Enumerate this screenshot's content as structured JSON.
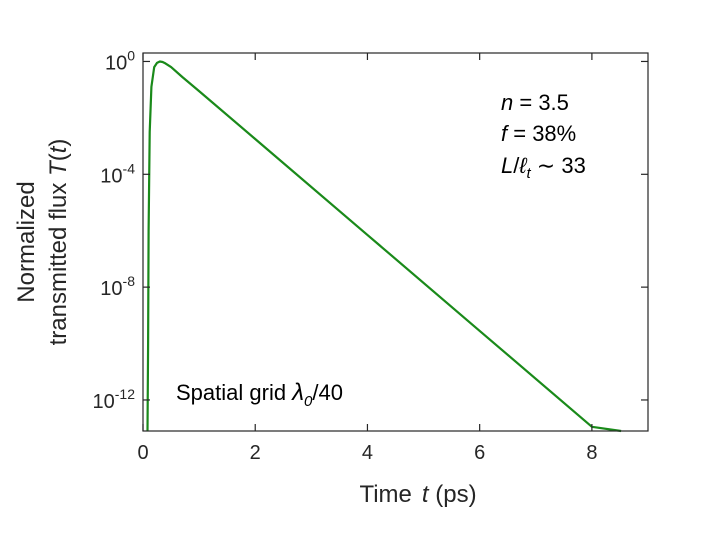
{
  "chart_data": {
    "type": "line",
    "xlabel": {
      "prefix": "Time",
      "var": "t",
      "suffix": " (ps)"
    },
    "ylabel": {
      "line1": "Normalized",
      "line2_prefix": "transmitted flux ",
      "line2_func": "T",
      "line2_var": "t"
    },
    "xlim": [
      0,
      9
    ],
    "xticks": [
      0,
      2,
      4,
      6,
      8
    ],
    "yscale": "log",
    "ylim_exponent": [
      -13.1,
      0.3
    ],
    "yticks": [
      {
        "base": "10",
        "exp": "0",
        "value": 1
      },
      {
        "base": "10",
        "exp": "-4",
        "value": 0.0001
      },
      {
        "base": "10",
        "exp": "-8",
        "value": 1e-08
      },
      {
        "base": "10",
        "exp": "-12",
        "value": 1e-12
      }
    ],
    "grid": false,
    "series": [
      {
        "color": "#1a8a1a",
        "x": [
          0.08,
          0.09,
          0.1,
          0.12,
          0.15,
          0.2,
          0.25,
          0.3,
          0.35,
          0.4,
          0.5,
          0.7,
          1.0,
          2.0,
          4.0,
          6.0,
          8.0,
          8.52
        ],
        "y_exponent": [
          -13.1,
          -10.0,
          -6.0,
          -2.5,
          -0.9,
          -0.2,
          -0.05,
          0.0,
          -0.02,
          -0.07,
          -0.2,
          -0.55,
          -1.05,
          -2.75,
          -6.15,
          -9.55,
          -12.95,
          -13.1
        ]
      }
    ],
    "annotations": {
      "params": {
        "n_var": "n",
        "n_rest": " = 3.5",
        "f_var": "f",
        "f_rest": " = 38%",
        "L_var": "L",
        "slash": "/",
        "ell": "ℓ",
        "ell_sub": "t",
        "approx": " ∼ 33"
      },
      "grid_note": {
        "text": "Spatial grid ",
        "lambda": "λ",
        "lambda_sub": "0",
        "rest": "/40"
      }
    }
  }
}
